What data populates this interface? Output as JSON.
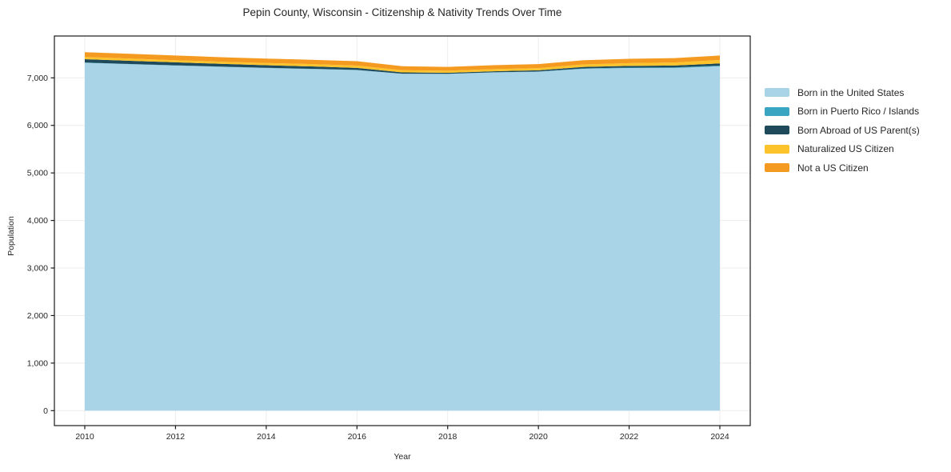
{
  "title": "Pepin County, Wisconsin - Citizenship & Nativity Trends Over Time",
  "chart_data": {
    "type": "area",
    "stacked": true,
    "title": "Pepin County, Wisconsin - Citizenship & Nativity Trends Over Time",
    "xlabel": "Year",
    "ylabel": "Population",
    "x": [
      2010,
      2011,
      2012,
      2013,
      2014,
      2015,
      2016,
      2017,
      2018,
      2019,
      2020,
      2021,
      2022,
      2023,
      2024
    ],
    "series": [
      {
        "name": "Born in the United States",
        "color": "#a9d3e6",
        "values": [
          7316,
          7286,
          7258,
          7232,
          7206,
          7185,
          7162,
          7085,
          7082,
          7114,
          7129,
          7190,
          7206,
          7207,
          7243
        ]
      },
      {
        "name": "Born in Puerto Rico / Islands",
        "color": "#3aa5c1",
        "values": [
          6,
          6,
          6,
          5,
          5,
          5,
          4,
          2,
          2,
          2,
          4,
          8,
          10,
          12,
          15
        ]
      },
      {
        "name": "Born Abroad of US Parent(s)",
        "color": "#1f4a5c",
        "values": [
          70,
          66,
          62,
          58,
          54,
          50,
          42,
          28,
          22,
          22,
          26,
          32,
          36,
          40,
          45
        ]
      },
      {
        "name": "Naturalized US Citizen",
        "color": "#fcc32b",
        "values": [
          48,
          47,
          46,
          45,
          48,
          50,
          50,
          45,
          44,
          45,
          46,
          52,
          58,
          64,
          72
        ]
      },
      {
        "name": "Not a US Citizen",
        "color": "#f59a20",
        "values": [
          100,
          100,
          98,
          95,
          92,
          90,
          92,
          85,
          80,
          82,
          85,
          88,
          90,
          92,
          95
        ]
      }
    ],
    "totals": [
      7540,
      7505,
      7470,
      7435,
      7405,
      7380,
      7350,
      7245,
      7230,
      7265,
      7290,
      7370,
      7400,
      7415,
      7470
    ],
    "x_tick_values": [
      2010,
      2012,
      2014,
      2016,
      2018,
      2020,
      2022,
      2024
    ],
    "x_tick_labels": [
      "2010",
      "2012",
      "2014",
      "2016",
      "2018",
      "2020",
      "2022",
      "2024"
    ],
    "y_tick_values": [
      0,
      1000,
      2000,
      3000,
      4000,
      5000,
      6000,
      7000
    ],
    "y_tick_labels": [
      "0",
      "1,000",
      "2,000",
      "3,000",
      "4,000",
      "5,000",
      "6,000",
      "7,000"
    ],
    "xlim": [
      2009.33,
      2024.67
    ],
    "ylim": [
      0,
      7880
    ],
    "grid": true,
    "grid_color": "#ececec",
    "axis_color": "#1a1a1a",
    "legend_position": "right"
  }
}
